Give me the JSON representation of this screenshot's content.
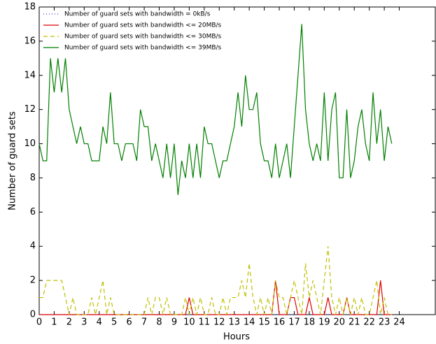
{
  "chart_data": {
    "type": "line",
    "xlabel": "Hours",
    "ylabel": "Number of guard sets",
    "xlim": [
      0,
      26.4
    ],
    "ylim": [
      0,
      18
    ],
    "xticks": [
      0,
      1,
      2,
      3,
      4,
      5,
      6,
      7,
      8,
      9,
      10,
      11,
      12,
      13,
      14,
      15,
      16,
      17,
      18,
      19,
      20,
      21,
      22,
      23,
      24
    ],
    "yticks": [
      0,
      2,
      4,
      6,
      8,
      10,
      12,
      14,
      16,
      18
    ],
    "legend": "upper-left",
    "x": [
      0,
      0.25,
      0.5,
      0.75,
      1,
      1.25,
      1.5,
      1.75,
      2,
      2.25,
      2.5,
      2.75,
      3,
      3.25,
      3.5,
      3.75,
      4,
      4.25,
      4.5,
      4.75,
      5,
      5.25,
      5.5,
      5.75,
      6,
      6.25,
      6.5,
      6.75,
      7,
      7.25,
      7.5,
      7.75,
      8,
      8.25,
      8.5,
      8.75,
      9,
      9.25,
      9.5,
      9.75,
      10,
      10.25,
      10.5,
      10.75,
      11,
      11.25,
      11.5,
      11.75,
      12,
      12.25,
      12.5,
      12.75,
      13,
      13.25,
      13.5,
      13.75,
      14,
      14.25,
      14.5,
      14.75,
      15,
      15.25,
      15.5,
      15.75,
      16,
      16.25,
      16.5,
      16.75,
      17,
      17.25,
      17.5,
      17.75,
      18,
      18.25,
      18.5,
      18.75,
      19,
      19.25,
      19.5,
      19.75,
      20,
      20.25,
      20.5,
      20.75,
      21,
      21.25,
      21.5,
      21.75,
      22,
      22.25,
      22.5,
      22.75,
      23,
      23.25,
      23.5
    ],
    "series": [
      {
        "name": "Number of guard sets with bandwidth = 0kB/s",
        "color": "#3f3fbf",
        "linestyle": "dotted",
        "values": [
          0,
          0,
          0,
          0,
          0,
          0,
          0,
          0,
          0,
          0,
          0,
          0,
          0,
          0,
          0,
          0,
          0,
          0,
          0,
          0,
          0,
          0,
          0,
          0,
          0,
          0,
          0,
          0,
          0,
          0,
          0,
          0,
          0,
          0,
          0,
          0,
          0,
          0,
          0,
          0,
          0,
          0,
          0,
          0,
          0,
          0,
          0,
          0,
          0,
          0,
          0,
          0,
          0,
          0,
          0,
          0,
          0,
          0,
          0,
          0,
          0,
          0,
          0,
          0,
          0,
          0,
          0,
          0,
          0,
          0,
          0,
          0,
          0,
          0,
          0,
          0,
          0,
          0,
          0,
          0,
          0,
          0,
          0,
          0,
          0,
          0,
          0,
          0,
          0,
          0,
          0,
          0,
          0,
          0,
          0
        ]
      },
      {
        "name": "Number of guard sets with bandwidth <= 20MB/s",
        "color": "#dd0000",
        "linestyle": "solid",
        "values": [
          0,
          0,
          0,
          0,
          0,
          0,
          0,
          0,
          0,
          0,
          0,
          0,
          0,
          0,
          0,
          0,
          0,
          0,
          0,
          0,
          0,
          0,
          0,
          0,
          0,
          0,
          0,
          0,
          0,
          0,
          0,
          0,
          0,
          0,
          0,
          0,
          0,
          0,
          0,
          0,
          1,
          0,
          0,
          0,
          0,
          0,
          0,
          0,
          0,
          0,
          0,
          0,
          0,
          0,
          0,
          0,
          0,
          0,
          0,
          0,
          0,
          0,
          0,
          2,
          0,
          0,
          0,
          1,
          1,
          0,
          0,
          0,
          1,
          0,
          0,
          0,
          0,
          1,
          0,
          0,
          0,
          0,
          1,
          0,
          0,
          0,
          0,
          0,
          0,
          0,
          0,
          2,
          0,
          0,
          0
        ]
      },
      {
        "name": "Number of guard sets with bandwidth <= 30MB/s",
        "color": "#bfbf00",
        "linestyle": "dashed",
        "values": [
          1,
          1,
          2,
          2,
          2,
          2,
          2,
          1,
          0,
          1,
          0,
          0,
          0,
          0,
          1,
          0,
          1,
          2,
          0,
          1,
          0,
          0,
          0,
          0,
          0,
          0,
          0,
          0,
          0,
          1,
          0,
          1,
          1,
          0,
          1,
          0,
          0,
          0,
          0,
          1,
          0,
          1,
          0,
          1,
          0,
          0,
          1,
          0,
          0,
          1,
          0,
          1,
          1,
          1,
          2,
          1,
          3,
          1,
          0,
          1,
          0,
          1,
          0,
          2,
          1,
          1,
          0,
          1,
          2,
          1,
          0,
          3,
          1,
          2,
          1,
          0,
          2,
          4,
          1,
          0,
          1,
          0,
          1,
          0,
          1,
          0,
          1,
          0,
          0,
          1,
          2,
          0,
          1,
          0,
          0
        ]
      },
      {
        "name": "Number of guard sets with bandwidth <= 39MB/s",
        "color": "#007f00",
        "linestyle": "solid",
        "values": [
          10,
          9,
          9,
          15,
          13,
          15,
          13,
          15,
          12,
          11,
          10,
          11,
          10,
          10,
          9,
          9,
          9,
          11,
          10,
          13,
          10,
          10,
          9,
          10,
          10,
          10,
          9,
          12,
          11,
          11,
          9,
          10,
          9,
          8,
          10,
          8,
          10,
          7,
          9,
          8,
          10,
          8,
          10,
          8,
          11,
          10,
          10,
          9,
          8,
          9,
          9,
          10,
          11,
          13,
          11,
          14,
          12,
          12,
          13,
          10,
          9,
          9,
          8,
          10,
          8,
          9,
          10,
          8,
          11,
          14,
          17,
          12,
          10,
          9,
          10,
          9,
          13,
          9,
          12,
          13,
          8,
          8,
          12,
          8,
          9,
          11,
          12,
          10,
          9,
          13,
          10,
          12,
          9,
          11,
          10
        ]
      }
    ]
  }
}
